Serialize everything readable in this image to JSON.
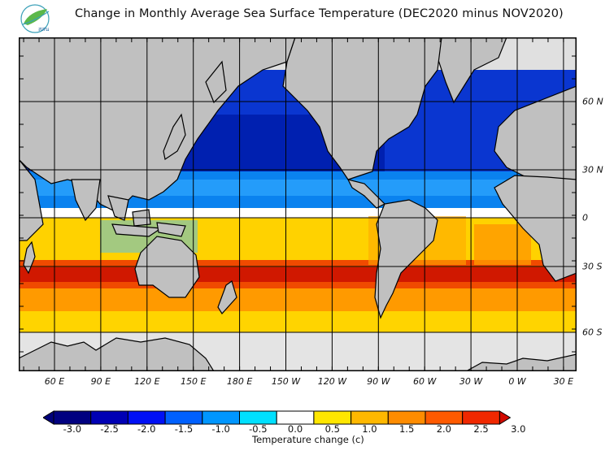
{
  "header": {
    "title": "Change in Monthly Average Sea Surface Temperature (DEC2020 minus NOV2020)",
    "logo_text": "สสน"
  },
  "chart_data": {
    "type": "heatmap",
    "title": "Change in Monthly Average Sea Surface Temperature (DEC2020 minus NOV2020)",
    "projection": "equirectangular, centered on Pacific",
    "xlabel": "",
    "ylabel": "",
    "x_ticks": [
      "60 E",
      "90 E",
      "120 E",
      "150 E",
      "180 E",
      "150 W",
      "120 W",
      "90 W",
      "60 W",
      "30 W",
      "0 W",
      "30 E"
    ],
    "y_ticks": [
      "60 N",
      "30 N",
      "0",
      "30 S",
      "60 S"
    ],
    "xlim": [
      "~40 E",
      "~45 E (wrapped)"
    ],
    "ylim": [
      "~78 S",
      "~85 N"
    ],
    "grid": true,
    "legend": {
      "placement": "bottom",
      "title": "Temperature change  (c)",
      "ticks": [
        "-3.0",
        "-2.5",
        "-2.0",
        "-1.5",
        "-1.0",
        "-0.5",
        "0.0",
        "0.5",
        "1.0",
        "1.5",
        "2.0",
        "2.5",
        "3.0"
      ],
      "bins": [
        {
          "range": "< -3.0",
          "color": "#00007a",
          "arrow": true
        },
        {
          "range": "-3.0 to -2.5",
          "color": "#000080"
        },
        {
          "range": "-2.5 to -2.0",
          "color": "#0000b4"
        },
        {
          "range": "-2.0 to -1.5",
          "color": "#0010f5"
        },
        {
          "range": "-1.5 to -1.0",
          "color": "#0060ff"
        },
        {
          "range": "-1.0 to -0.5",
          "color": "#0096ff"
        },
        {
          "range": "-0.5 to 0.0",
          "color": "#00e0ff"
        },
        {
          "range": "0.0 to 0.5",
          "color": "#ffffff"
        },
        {
          "range": "0.5 to 1.0",
          "color": "#ffe600"
        },
        {
          "range": "1.0 to 1.5",
          "color": "#ffb800"
        },
        {
          "range": "1.5 to 2.0",
          "color": "#ff8c00"
        },
        {
          "range": "2.0 to 2.5",
          "color": "#ff5a00"
        },
        {
          "range": "2.5 to 3.0",
          "color": "#f02800"
        },
        {
          "range": "> 3.0",
          "color": "#d20a00",
          "arrow": true
        }
      ]
    },
    "regions": [
      {
        "name": "North Pacific (30N-60N)",
        "change_c": -2.0
      },
      {
        "name": "North Pacific subtropics (0-30N)",
        "change_c": -1.0
      },
      {
        "name": "North Atlantic",
        "change_c": -1.5
      },
      {
        "name": "Mediterranean / Black Sea",
        "change_c": -2.5
      },
      {
        "name": "Equatorial band",
        "change_c": 0.0
      },
      {
        "name": "South Indian Ocean (30S-40S)",
        "change_c": 3.0
      },
      {
        "name": "South Pacific (30S-40S)",
        "change_c": 2.5
      },
      {
        "name": "South Atlantic (30S)",
        "change_c": 2.5
      },
      {
        "name": "Southern Ocean (45S-55S)",
        "change_c": 0.75
      },
      {
        "name": "Sea ice / no data (>60S)",
        "change_c": null
      }
    ],
    "land_color": "#c0c0c0",
    "ice_color": "#e0e0e0"
  }
}
